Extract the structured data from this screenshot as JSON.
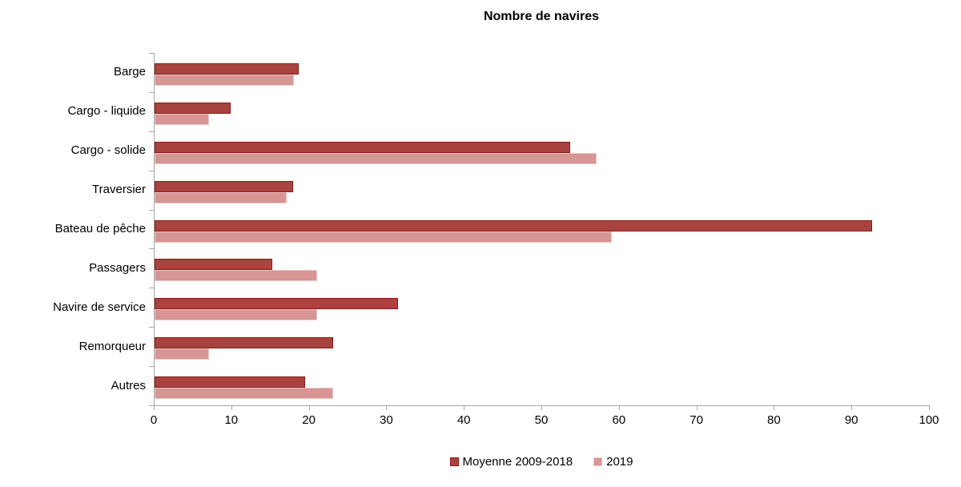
{
  "chart_data": {
    "type": "bar",
    "orientation": "horizontal",
    "title": "Nombre de navires",
    "categories": [
      "Barge",
      "Cargo - liquide",
      "Cargo - solide",
      "Traversier",
      "Bateau de pêche",
      "Passagers",
      "Navire de service",
      "Remorqueur",
      "Autres"
    ],
    "series": [
      {
        "name": "Moyenne 2009-2018",
        "fill": "#a8433f",
        "border": "#8b1a14",
        "values": [
          18.6,
          9.8,
          53.6,
          17.9,
          92.6,
          15.2,
          31.4,
          23.0,
          19.4
        ]
      },
      {
        "name": "2019",
        "fill": "#d79593",
        "border": "#ebc8c6",
        "values": [
          18,
          7,
          57,
          17,
          59,
          21,
          21,
          7,
          23
        ]
      }
    ],
    "xlim": [
      0,
      100
    ],
    "tick_step": 10,
    "axis_ticks": [
      "0",
      "10",
      "20",
      "30",
      "40",
      "50",
      "60",
      "70",
      "80",
      "90",
      "100"
    ],
    "grid": "off",
    "legend_position": "bottom",
    "axis_color": "#a6a6a6",
    "text_color": "#000000"
  }
}
